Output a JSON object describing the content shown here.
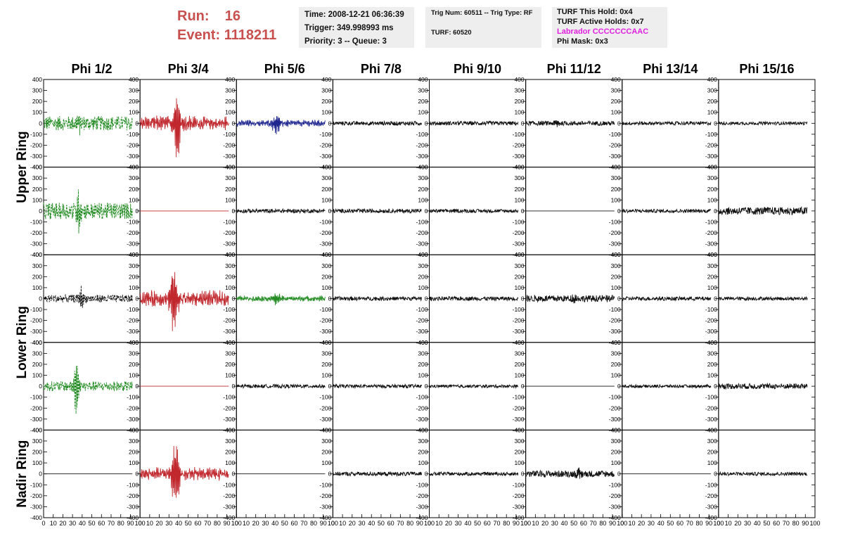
{
  "header": {
    "run_label": "Run:",
    "run_value": "16",
    "event_label": "Event:",
    "event_value": "1118211",
    "time": "Time: 2008-12-21 06:36:39",
    "trigger": "Trigger: 349.998993 ms",
    "priority": "Priority: 3 -- Queue: 3",
    "trig_num": "Trig Num: 60511 -- Trig Type: RF",
    "turf": "TURF: 60520",
    "turf_hold": "TURF This Hold: 0x4",
    "turf_active": "TURF Active Holds: 0x7",
    "labrador": "Labrador CCCCCCCAAC",
    "phi_mask": "Phi Mask: 0x3"
  },
  "chart_data": {
    "type": "line",
    "columns": [
      "Phi 1/2",
      "Phi 3/4",
      "Phi 5/6",
      "Phi 7/8",
      "Phi 9/10",
      "Phi 11/12",
      "Phi 13/14",
      "Phi 15/16"
    ],
    "ring_labels": [
      "Upper Ring",
      "Lower Ring",
      "Nadir Ring"
    ],
    "ylim": [
      -400,
      400
    ],
    "xlim": [
      0,
      100
    ],
    "y_ticks": [
      400,
      300,
      200,
      100,
      0,
      -100,
      -200,
      -300,
      -400
    ],
    "x_ticks": [
      0,
      10,
      20,
      30,
      40,
      50,
      60,
      70,
      80,
      90,
      100
    ],
    "trace_colors": {
      "green": "#228b22",
      "red": "#c0282e",
      "blue": "#202890",
      "black": "#111111"
    },
    "panels": [
      [
        {
          "color": "green",
          "dashed": true,
          "amp": 65,
          "burst": 75,
          "center": 40,
          "type": "noise"
        },
        {
          "color": "red",
          "dashed": false,
          "amp": 40,
          "burst": 340,
          "center": 42,
          "type": "burst"
        },
        {
          "color": "blue",
          "dashed": false,
          "amp": 18,
          "burst": 110,
          "center": 45,
          "type": "burst"
        },
        {
          "color": "black",
          "dashed": false,
          "amp": 18,
          "burst": 0,
          "center": 50,
          "type": "noise"
        },
        {
          "color": "black",
          "dashed": false,
          "amp": 18,
          "burst": 0,
          "center": 50,
          "type": "noise"
        },
        {
          "color": "black",
          "dashed": false,
          "amp": 20,
          "burst": 30,
          "center": 35,
          "type": "noise"
        },
        {
          "color": "black",
          "dashed": false,
          "amp": 16,
          "burst": 0,
          "center": 50,
          "type": "noise"
        },
        {
          "color": "black",
          "dashed": false,
          "amp": 14,
          "burst": 0,
          "center": 50,
          "type": "noise"
        }
      ],
      [
        {
          "color": "green",
          "dashed": true,
          "amp": 75,
          "burst": 190,
          "center": 40,
          "type": "noise"
        },
        {
          "color": "red",
          "dashed": false,
          "amp": 0,
          "burst": 0,
          "center": 50,
          "type": "flat"
        },
        {
          "color": "black",
          "dashed": false,
          "amp": 18,
          "burst": 0,
          "center": 50,
          "type": "noise"
        },
        {
          "color": "black",
          "dashed": false,
          "amp": 18,
          "burst": 0,
          "center": 50,
          "type": "noise"
        },
        {
          "color": "black",
          "dashed": false,
          "amp": 16,
          "burst": 0,
          "center": 50,
          "type": "noise"
        },
        {
          "color": "black",
          "dashed": false,
          "amp": 0,
          "burst": 0,
          "center": 50,
          "type": "flat"
        },
        {
          "color": "black",
          "dashed": false,
          "amp": 16,
          "burst": 0,
          "center": 50,
          "type": "noise"
        },
        {
          "color": "black",
          "dashed": false,
          "amp": 35,
          "burst": 0,
          "center": 50,
          "type": "noise"
        }
      ],
      [
        {
          "color": "black",
          "dashed": true,
          "amp": 35,
          "burst": 110,
          "center": 42,
          "type": "noise"
        },
        {
          "color": "red",
          "dashed": false,
          "amp": 45,
          "burst": 340,
          "center": 38,
          "type": "burst"
        },
        {
          "color": "green",
          "dashed": false,
          "amp": 15,
          "burst": 70,
          "center": 45,
          "type": "burst"
        },
        {
          "color": "black",
          "dashed": false,
          "amp": 18,
          "burst": 0,
          "center": 50,
          "type": "noise"
        },
        {
          "color": "black",
          "dashed": false,
          "amp": 18,
          "burst": 0,
          "center": 50,
          "type": "noise"
        },
        {
          "color": "black",
          "dashed": false,
          "amp": 30,
          "burst": 40,
          "center": 55,
          "type": "noise"
        },
        {
          "color": "black",
          "dashed": false,
          "amp": 18,
          "burst": 0,
          "center": 50,
          "type": "noise"
        },
        {
          "color": "black",
          "dashed": false,
          "amp": 16,
          "burst": 0,
          "center": 50,
          "type": "noise"
        }
      ],
      [
        {
          "color": "green",
          "dashed": true,
          "amp": 45,
          "burst": 300,
          "center": 37,
          "type": "noise"
        },
        {
          "color": "red",
          "dashed": false,
          "amp": 0,
          "burst": 0,
          "center": 50,
          "type": "flat"
        },
        {
          "color": "black",
          "dashed": false,
          "amp": 16,
          "burst": 0,
          "center": 50,
          "type": "noise"
        },
        {
          "color": "black",
          "dashed": false,
          "amp": 16,
          "burst": 0,
          "center": 50,
          "type": "noise"
        },
        {
          "color": "black",
          "dashed": false,
          "amp": 14,
          "burst": 0,
          "center": 50,
          "type": "noise"
        },
        {
          "color": "black",
          "dashed": false,
          "amp": 0,
          "burst": 0,
          "center": 50,
          "type": "flat"
        },
        {
          "color": "black",
          "dashed": false,
          "amp": 14,
          "burst": 0,
          "center": 50,
          "type": "noise"
        },
        {
          "color": "black",
          "dashed": false,
          "amp": 25,
          "burst": 0,
          "center": 50,
          "type": "noise"
        }
      ],
      [
        {
          "color": "black",
          "dashed": false,
          "amp": 0,
          "burst": 0,
          "center": 50,
          "type": "flat"
        },
        {
          "color": "red",
          "dashed": false,
          "amp": 35,
          "burst": 340,
          "center": 40,
          "type": "burst"
        },
        {
          "color": "black",
          "dashed": false,
          "amp": 0,
          "burst": 0,
          "center": 50,
          "type": "flat"
        },
        {
          "color": "black",
          "dashed": false,
          "amp": 18,
          "burst": 0,
          "center": 50,
          "type": "noise"
        },
        {
          "color": "black",
          "dashed": false,
          "amp": 16,
          "burst": 0,
          "center": 50,
          "type": "noise"
        },
        {
          "color": "black",
          "dashed": false,
          "amp": 30,
          "burst": 60,
          "center": 60,
          "type": "noise"
        },
        {
          "color": "black",
          "dashed": false,
          "amp": 0,
          "burst": 0,
          "center": 50,
          "type": "flat"
        },
        {
          "color": "black",
          "dashed": false,
          "amp": 16,
          "burst": 0,
          "center": 50,
          "type": "noise"
        }
      ]
    ]
  }
}
